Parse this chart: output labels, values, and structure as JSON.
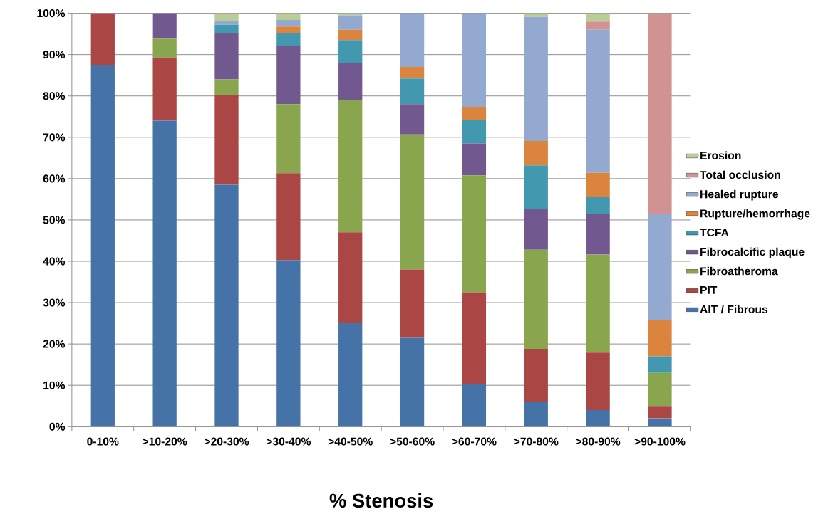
{
  "chart_data": {
    "type": "bar",
    "stacked": true,
    "xlabel": "% Stenosis",
    "categories": [
      "0-10%",
      ">10-20%",
      ">20-30%",
      ">30-40%",
      ">40-50%",
      ">50-60%",
      ">60-70%",
      ">70-80%",
      ">80-90%",
      ">90-100%"
    ],
    "series": [
      {
        "name": "AIT / Fibrous",
        "color": "#4572a7",
        "values": [
          87.5,
          74,
          58.5,
          40.3,
          25,
          21.5,
          10.3,
          6,
          4,
          2
        ]
      },
      {
        "name": "PIT",
        "color": "#aa4643",
        "values": [
          12.5,
          15.3,
          21.7,
          21,
          22,
          16.5,
          22.2,
          12.8,
          13.9,
          3
        ]
      },
      {
        "name": "Fibroatheroma",
        "color": "#89a54e",
        "values": [
          0,
          4.5,
          3.8,
          16.7,
          32,
          32.7,
          28.3,
          24,
          23.7,
          8
        ]
      },
      {
        "name": "Fibrocalcific plaque",
        "color": "#71588f",
        "values": [
          0,
          6.2,
          11.3,
          14,
          9,
          7.3,
          7.7,
          9.9,
          9.9,
          0
        ]
      },
      {
        "name": "TCFA",
        "color": "#4198af",
        "values": [
          0,
          0,
          1.9,
          3.2,
          5.5,
          6.2,
          5.7,
          10.5,
          4,
          4
        ]
      },
      {
        "name": "Rupture/hemorrhage",
        "color": "#db843d",
        "values": [
          0,
          0,
          0,
          1.6,
          2.5,
          2.8,
          3.1,
          5.9,
          5.9,
          8.8
        ]
      },
      {
        "name": "Healed rupture",
        "color": "#93a9cf",
        "values": [
          0,
          0,
          0.9,
          1.6,
          3.5,
          13,
          22.7,
          30,
          34.6,
          25.7
        ]
      },
      {
        "name": "Total occlusion",
        "color": "#d19392",
        "values": [
          0,
          0,
          0,
          0,
          0,
          0,
          0,
          0,
          2,
          48.5
        ]
      },
      {
        "name": "Erosion",
        "color": "#b9cd96",
        "values": [
          0,
          0,
          1.9,
          1.6,
          0.5,
          0,
          0,
          0.9,
          2,
          0
        ]
      }
    ],
    "ylim": [
      0,
      100
    ],
    "yticks": [
      {
        "value": 0,
        "label": "0%"
      },
      {
        "value": 10,
        "label": "10%"
      },
      {
        "value": 20,
        "label": "20%"
      },
      {
        "value": 30,
        "label": "30%"
      },
      {
        "value": 40,
        "label": "40%"
      },
      {
        "value": 50,
        "label": "50%"
      },
      {
        "value": 60,
        "label": "60%"
      },
      {
        "value": 70,
        "label": "70%"
      },
      {
        "value": 80,
        "label": "80%"
      },
      {
        "value": 90,
        "label": "90%"
      },
      {
        "value": 100,
        "label": "100%"
      }
    ],
    "grid": "y",
    "legend": "right"
  }
}
